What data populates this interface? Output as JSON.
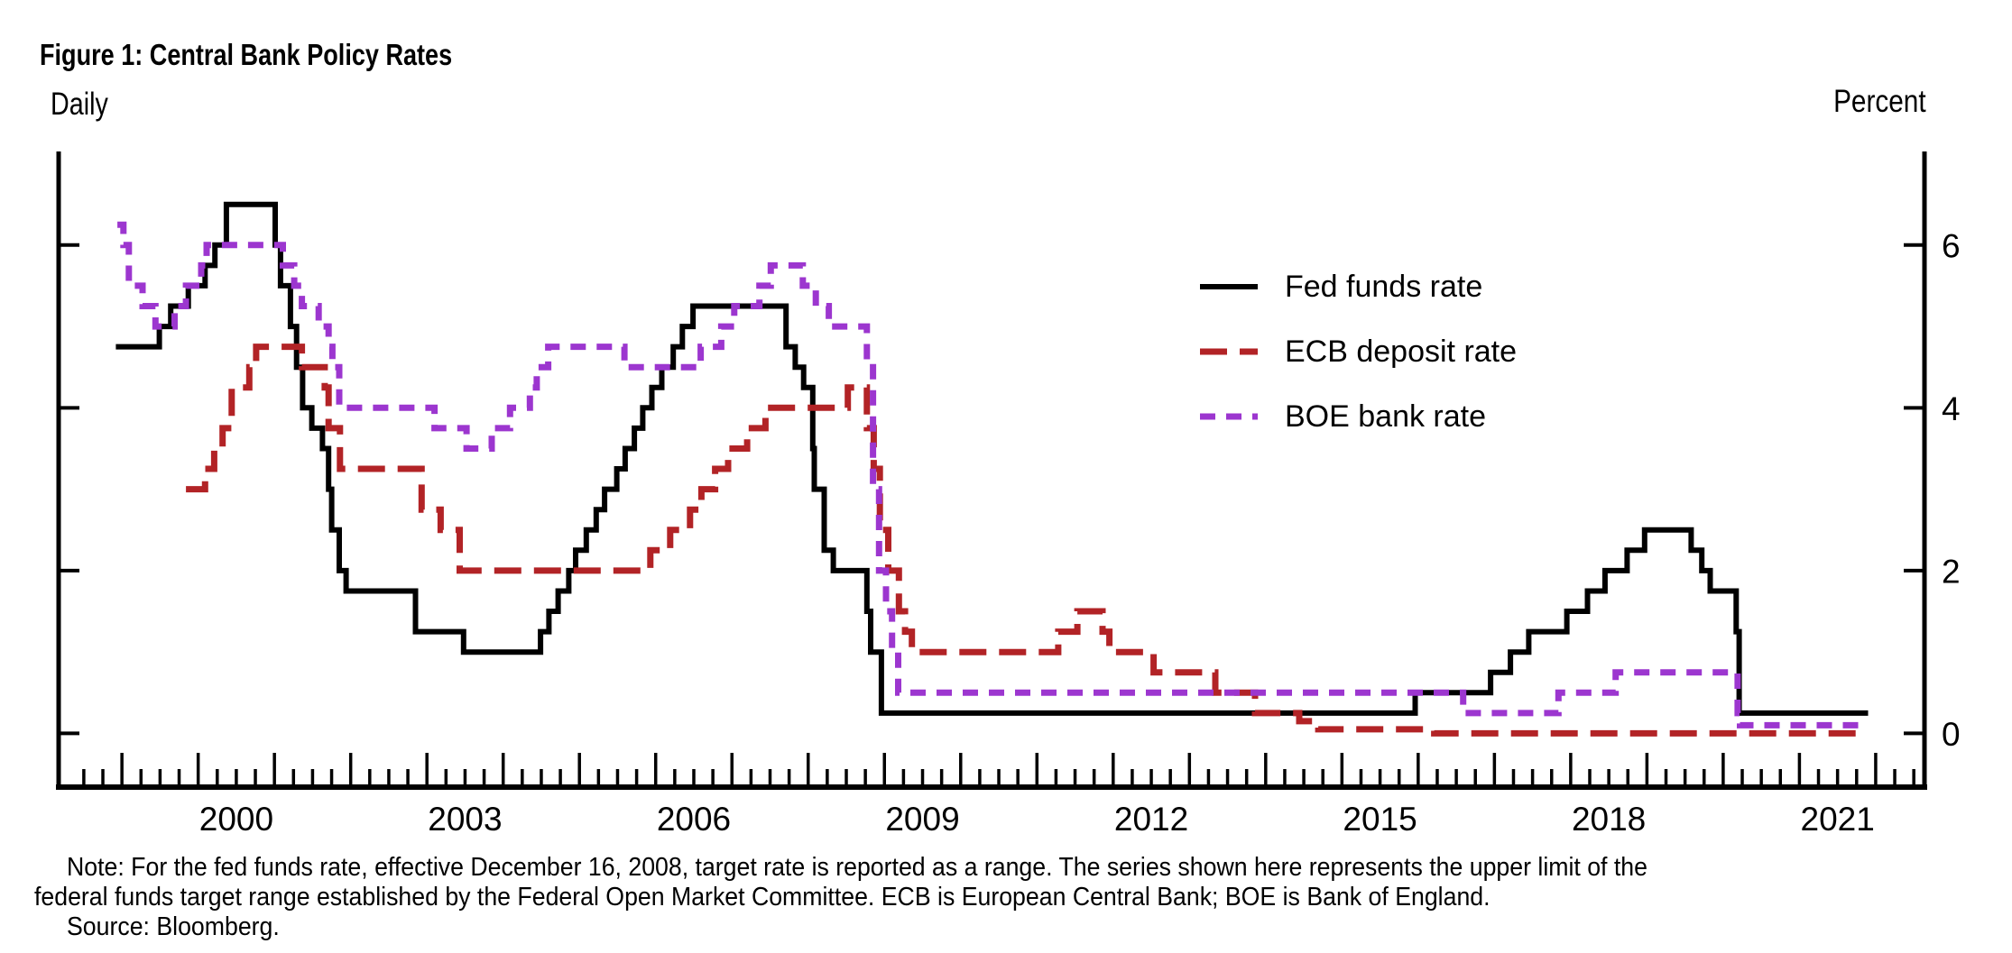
{
  "figure": {
    "title": "Figure 1: Central Bank Policy Rates",
    "frequency_label": "Daily",
    "unit_label": "Percent",
    "note_lines": [
      "Note: For the fed funds rate, effective December 16, 2008, target rate is reported as a range. The series shown here represents the upper limit of the",
      "federal funds target range established by the Federal Open Market Committee. ECB is European Central Bank; BOE is Bank of England.",
      "Source: Bloomberg."
    ]
  },
  "chart_data": {
    "type": "line",
    "step": true,
    "title": "Figure 1: Central Bank Policy Rates",
    "xlabel": "Daily",
    "ylabel": "Percent",
    "grid": false,
    "legend_position": "upper right inside",
    "x_axis": {
      "xlim": [
        1998.17,
        2022.64
      ],
      "tick_start": 1998.5,
      "tick_end": 2022.5,
      "tick_interval": 0.25,
      "major_tick_every_year": true,
      "label_years": [
        2000,
        2003,
        2006,
        2009,
        2012,
        2015,
        2018,
        2021
      ]
    },
    "y_axis": {
      "ylim": [
        -0.66,
        7.15
      ],
      "ticks": [
        0,
        2,
        4,
        6
      ],
      "label_side": "right"
    },
    "series": [
      {
        "id": "fed-funds-rate",
        "label": "Fed funds rate",
        "color": "#000000",
        "dash": null,
        "width": 6,
        "end": 2021.9,
        "points": [
          [
            1998.92,
            4.75
          ],
          [
            1999.49,
            5.0
          ],
          [
            1999.64,
            5.25
          ],
          [
            1999.87,
            5.5
          ],
          [
            2000.09,
            5.75
          ],
          [
            2000.22,
            6.0
          ],
          [
            2000.37,
            6.5
          ],
          [
            2001.01,
            6.0
          ],
          [
            2001.08,
            5.5
          ],
          [
            2001.21,
            5.0
          ],
          [
            2001.29,
            4.5
          ],
          [
            2001.37,
            4.0
          ],
          [
            2001.49,
            3.75
          ],
          [
            2001.63,
            3.5
          ],
          [
            2001.71,
            3.0
          ],
          [
            2001.75,
            2.5
          ],
          [
            2001.85,
            2.0
          ],
          [
            2001.94,
            1.75
          ],
          [
            2002.85,
            1.25
          ],
          [
            2003.48,
            1.0
          ],
          [
            2004.49,
            1.25
          ],
          [
            2004.6,
            1.5
          ],
          [
            2004.72,
            1.75
          ],
          [
            2004.86,
            2.0
          ],
          [
            2004.95,
            2.25
          ],
          [
            2005.09,
            2.5
          ],
          [
            2005.22,
            2.75
          ],
          [
            2005.33,
            3.0
          ],
          [
            2005.49,
            3.25
          ],
          [
            2005.6,
            3.5
          ],
          [
            2005.72,
            3.75
          ],
          [
            2005.83,
            4.0
          ],
          [
            2005.95,
            4.25
          ],
          [
            2006.08,
            4.5
          ],
          [
            2006.23,
            4.75
          ],
          [
            2006.35,
            5.0
          ],
          [
            2006.49,
            5.25
          ],
          [
            2007.71,
            4.75
          ],
          [
            2007.83,
            4.5
          ],
          [
            2007.94,
            4.25
          ],
          [
            2008.06,
            3.5
          ],
          [
            2008.08,
            3.0
          ],
          [
            2008.21,
            2.25
          ],
          [
            2008.33,
            2.0
          ],
          [
            2008.77,
            1.5
          ],
          [
            2008.82,
            1.0
          ],
          [
            2008.96,
            0.25
          ],
          [
            2015.96,
            0.5
          ],
          [
            2016.95,
            0.75
          ],
          [
            2017.21,
            1.0
          ],
          [
            2017.45,
            1.25
          ],
          [
            2017.95,
            1.5
          ],
          [
            2018.22,
            1.75
          ],
          [
            2018.45,
            2.0
          ],
          [
            2018.74,
            2.25
          ],
          [
            2018.97,
            2.5
          ],
          [
            2019.58,
            2.25
          ],
          [
            2019.72,
            2.0
          ],
          [
            2019.83,
            1.75
          ],
          [
            2020.17,
            1.25
          ],
          [
            2020.21,
            0.25
          ]
        ]
      },
      {
        "id": "ecb-deposit-rate",
        "label": "ECB deposit rate",
        "color": "#b22326",
        "dash": [
          30,
          14
        ],
        "width": 7,
        "end": 2021.9,
        "points": [
          [
            1999.84,
            3.0
          ],
          [
            2000.09,
            3.25
          ],
          [
            2000.21,
            3.5
          ],
          [
            2000.32,
            3.75
          ],
          [
            2000.44,
            4.25
          ],
          [
            2000.67,
            4.5
          ],
          [
            2000.76,
            4.75
          ],
          [
            2001.36,
            4.5
          ],
          [
            2001.66,
            4.25
          ],
          [
            2001.71,
            3.75
          ],
          [
            2001.86,
            3.25
          ],
          [
            2002.93,
            2.75
          ],
          [
            2003.18,
            2.5
          ],
          [
            2003.43,
            2.0
          ],
          [
            2005.93,
            2.25
          ],
          [
            2006.19,
            2.5
          ],
          [
            2006.45,
            2.75
          ],
          [
            2006.6,
            3.0
          ],
          [
            2006.78,
            3.25
          ],
          [
            2006.95,
            3.5
          ],
          [
            2007.2,
            3.75
          ],
          [
            2007.44,
            4.0
          ],
          [
            2008.52,
            4.25
          ],
          [
            2008.77,
            3.75
          ],
          [
            2008.86,
            3.25
          ],
          [
            2008.94,
            2.5
          ],
          [
            2009.05,
            2.0
          ],
          [
            2009.19,
            1.5
          ],
          [
            2009.27,
            1.25
          ],
          [
            2009.36,
            1.0
          ],
          [
            2011.28,
            1.25
          ],
          [
            2011.53,
            1.5
          ],
          [
            2011.86,
            1.25
          ],
          [
            2011.95,
            1.0
          ],
          [
            2012.53,
            0.75
          ],
          [
            2013.34,
            0.5
          ],
          [
            2013.86,
            0.25
          ],
          [
            2014.44,
            0.15
          ],
          [
            2014.69,
            0.05
          ],
          [
            2016.21,
            0.0
          ]
        ]
      },
      {
        "id": "boe-bank-rate",
        "label": "BOE bank rate",
        "color": "#9c36cf",
        "dash": [
          17,
          12
        ],
        "width": 7,
        "end": 2021.9,
        "points": [
          [
            1998.94,
            6.25
          ],
          [
            1999.02,
            6.0
          ],
          [
            1999.09,
            5.5
          ],
          [
            1999.27,
            5.25
          ],
          [
            1999.44,
            5.0
          ],
          [
            1999.69,
            5.25
          ],
          [
            1999.84,
            5.5
          ],
          [
            2000.04,
            5.75
          ],
          [
            2000.11,
            6.0
          ],
          [
            2001.11,
            5.75
          ],
          [
            2001.26,
            5.5
          ],
          [
            2001.36,
            5.25
          ],
          [
            2001.58,
            5.0
          ],
          [
            2001.71,
            4.75
          ],
          [
            2001.76,
            4.5
          ],
          [
            2001.85,
            4.0
          ],
          [
            2003.1,
            3.75
          ],
          [
            2003.52,
            3.5
          ],
          [
            2003.85,
            3.75
          ],
          [
            2004.09,
            4.0
          ],
          [
            2004.35,
            4.25
          ],
          [
            2004.44,
            4.5
          ],
          [
            2004.59,
            4.75
          ],
          [
            2005.59,
            4.5
          ],
          [
            2006.59,
            4.75
          ],
          [
            2006.86,
            5.0
          ],
          [
            2007.03,
            5.25
          ],
          [
            2007.36,
            5.5
          ],
          [
            2007.51,
            5.75
          ],
          [
            2007.93,
            5.5
          ],
          [
            2008.1,
            5.25
          ],
          [
            2008.27,
            5.0
          ],
          [
            2008.77,
            4.5
          ],
          [
            2008.85,
            3.0
          ],
          [
            2008.93,
            2.0
          ],
          [
            2009.02,
            1.5
          ],
          [
            2009.1,
            1.0
          ],
          [
            2009.18,
            0.5
          ],
          [
            2016.59,
            0.25
          ],
          [
            2017.84,
            0.5
          ],
          [
            2018.59,
            0.75
          ],
          [
            2020.19,
            0.25
          ],
          [
            2020.22,
            0.1
          ]
        ]
      }
    ]
  }
}
